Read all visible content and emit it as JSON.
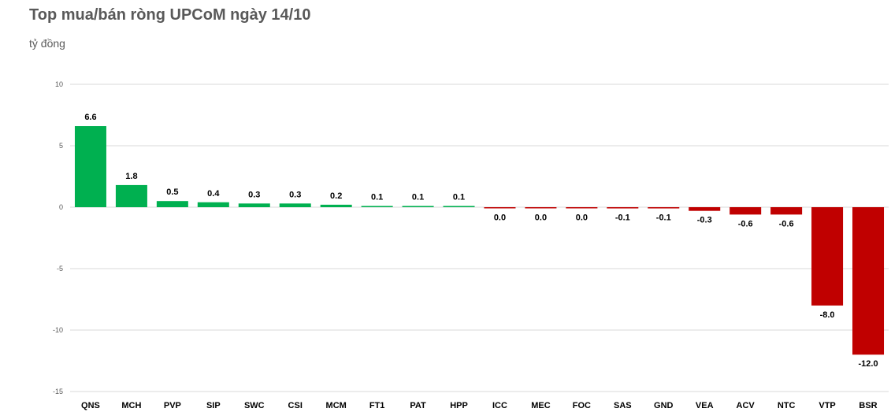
{
  "title": "Top mua/bán ròng UPCoM ngày 14/10",
  "unit_label": "tỷ đồng",
  "colors": {
    "positive": "#00b050",
    "negative": "#c00000",
    "grid": "#d9d9d9"
  },
  "chart_data": {
    "type": "bar",
    "title": "Top mua/bán ròng UPCoM ngày 14/10",
    "ylabel": "tỷ đồng",
    "xlabel": "",
    "ylim": [
      -15,
      10
    ],
    "yticks": [
      10,
      5,
      0,
      -5,
      -10,
      -15
    ],
    "categories": [
      "QNS",
      "MCH",
      "PVP",
      "SIP",
      "SWC",
      "CSI",
      "MCM",
      "FT1",
      "PAT",
      "HPP",
      "ICC",
      "MEC",
      "FOC",
      "SAS",
      "GND",
      "VEA",
      "ACV",
      "NTC",
      "VTP",
      "BSR"
    ],
    "values": [
      6.6,
      1.8,
      0.5,
      0.4,
      0.3,
      0.3,
      0.2,
      0.1,
      0.1,
      0.1,
      -0.04,
      -0.04,
      -0.04,
      -0.1,
      -0.1,
      -0.3,
      -0.6,
      -0.6,
      -8.0,
      -12.0
    ],
    "value_labels": [
      "6.6",
      "1.8",
      "0.5",
      "0.4",
      "0.3",
      "0.3",
      "0.2",
      "0.1",
      "0.1",
      "0.1",
      "0.0",
      "0.0",
      "0.0",
      "-0.1",
      "-0.1",
      "-0.3",
      "-0.6",
      "-0.6",
      "-8.0",
      "-12.0"
    ],
    "grid": true,
    "legend": "none"
  }
}
